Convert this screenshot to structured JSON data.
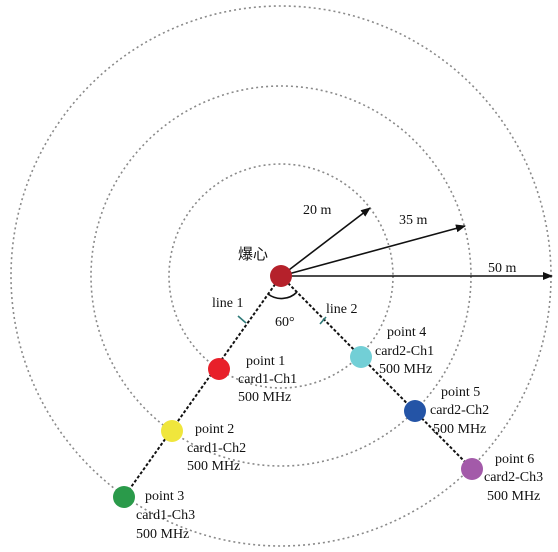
{
  "center": {
    "label": "爆心",
    "color": "#b5212b"
  },
  "rings": [
    {
      "label": "20 m"
    },
    {
      "label": "35 m"
    },
    {
      "label": "50 m"
    }
  ],
  "lines": [
    {
      "label": "line 1"
    },
    {
      "label": "line 2"
    }
  ],
  "angle": {
    "label": "60°"
  },
  "points": [
    {
      "name": "point 1",
      "channel": "card1-Ch1",
      "freq": "500 MHz",
      "color": "#e8202a"
    },
    {
      "name": "point 2",
      "channel": "card1-Ch2",
      "freq": "500 MHz",
      "color": "#f0e63c"
    },
    {
      "name": "point 3",
      "channel": "card1-Ch3",
      "freq": "500 MHz",
      "color": "#2a9a4a"
    },
    {
      "name": "point 4",
      "channel": "card2-Ch1",
      "freq": "500 MHz",
      "color": "#72cfd6"
    },
    {
      "name": "point 5",
      "channel": "card2-Ch2",
      "freq": "500 MHz",
      "color": "#2454a6"
    },
    {
      "name": "point 6",
      "channel": "card2-Ch3",
      "freq": "500 MHz",
      "color": "#a35aa9"
    }
  ]
}
